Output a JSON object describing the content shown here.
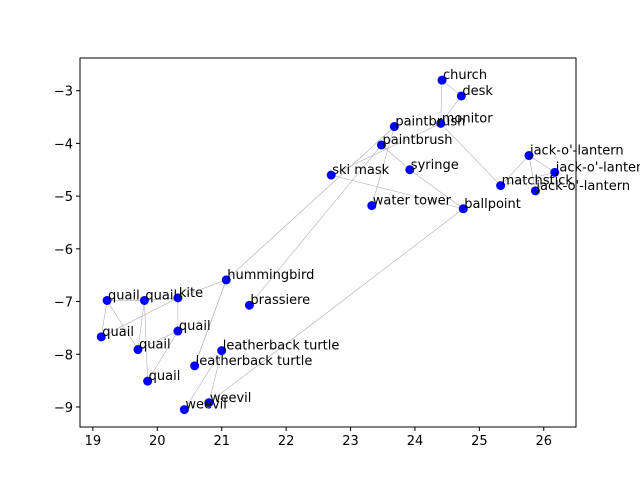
{
  "chart_data": {
    "type": "scatter",
    "title": "",
    "xlabel": "",
    "ylabel": "",
    "xlim": [
      18.8,
      26.5
    ],
    "ylim": [
      -9.38,
      -2.38
    ],
    "xticks": [
      19,
      20,
      21,
      22,
      23,
      24,
      25,
      26
    ],
    "yticks": [
      -3,
      -4,
      -5,
      -6,
      -7,
      -8,
      -9
    ],
    "grid": false,
    "marker_color": "#0000ff",
    "edge_color": "#b0b0b0",
    "points": [
      {
        "label": "church",
        "x": 24.42,
        "y": -2.8
      },
      {
        "label": "desk",
        "x": 24.72,
        "y": -3.1
      },
      {
        "label": "monitor",
        "x": 24.4,
        "y": -3.62
      },
      {
        "label": "paintbrush",
        "x": 23.68,
        "y": -3.68
      },
      {
        "label": "paintbrush",
        "x": 23.48,
        "y": -4.03
      },
      {
        "label": "syringe",
        "x": 23.92,
        "y": -4.5
      },
      {
        "label": "ski mask",
        "x": 22.7,
        "y": -4.6
      },
      {
        "label": "water tower",
        "x": 23.33,
        "y": -5.18
      },
      {
        "label": "ballpoint",
        "x": 24.75,
        "y": -5.24
      },
      {
        "label": "matchstick",
        "x": 25.33,
        "y": -4.8
      },
      {
        "label": "jack-o'-lantern",
        "x": 25.77,
        "y": -4.23
      },
      {
        "label": "jack-o'-lantern",
        "x": 26.17,
        "y": -4.55
      },
      {
        "label": "jack-o'-lantern",
        "x": 25.87,
        "y": -4.9
      },
      {
        "label": "hummingbird",
        "x": 21.07,
        "y": -6.59
      },
      {
        "label": "brassiere",
        "x": 21.43,
        "y": -7.07
      },
      {
        "label": "kite",
        "x": 20.32,
        "y": -6.93
      },
      {
        "label": "quail",
        "x": 19.22,
        "y": -6.98
      },
      {
        "label": "quail",
        "x": 19.8,
        "y": -6.98
      },
      {
        "label": "quail",
        "x": 19.13,
        "y": -7.67
      },
      {
        "label": "quail",
        "x": 20.32,
        "y": -7.56
      },
      {
        "label": "quail",
        "x": 19.7,
        "y": -7.91
      },
      {
        "label": "quail",
        "x": 19.85,
        "y": -8.51
      },
      {
        "label": "leatherback turtle",
        "x": 21.0,
        "y": -7.93
      },
      {
        "label": "leatherback turtle",
        "x": 20.58,
        "y": -8.22
      },
      {
        "label": "weevil",
        "x": 20.8,
        "y": -8.92
      },
      {
        "label": "weevil",
        "x": 20.42,
        "y": -9.05
      }
    ],
    "edges": [
      [
        0,
        1
      ],
      [
        0,
        2
      ],
      [
        1,
        2
      ],
      [
        2,
        9
      ],
      [
        2,
        6
      ],
      [
        3,
        7
      ],
      [
        3,
        13
      ],
      [
        4,
        14
      ],
      [
        4,
        5
      ],
      [
        5,
        8
      ],
      [
        6,
        8
      ],
      [
        8,
        24
      ],
      [
        9,
        10
      ],
      [
        9,
        11
      ],
      [
        10,
        11
      ],
      [
        11,
        12
      ],
      [
        10,
        12
      ],
      [
        13,
        15
      ],
      [
        13,
        23
      ],
      [
        15,
        19
      ],
      [
        15,
        17
      ],
      [
        15,
        18
      ],
      [
        16,
        17
      ],
      [
        16,
        18
      ],
      [
        17,
        20
      ],
      [
        17,
        21
      ],
      [
        19,
        20
      ],
      [
        16,
        20
      ],
      [
        22,
        25
      ],
      [
        21,
        19
      ],
      [
        23,
        13
      ],
      [
        24,
        22
      ]
    ]
  }
}
